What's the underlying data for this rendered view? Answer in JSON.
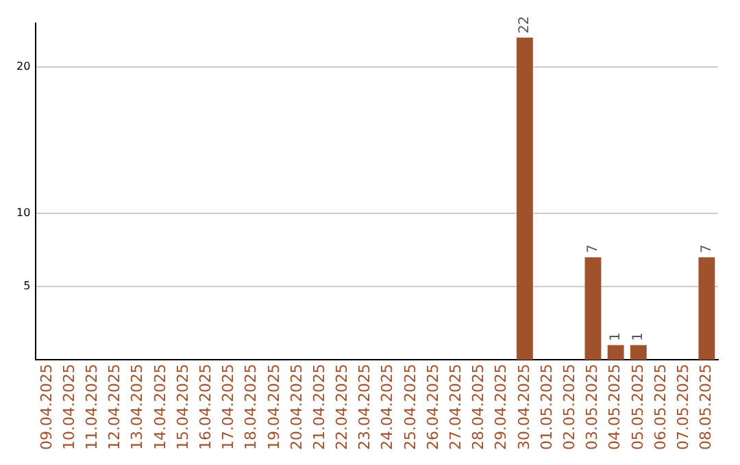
{
  "chart_data": {
    "type": "bar",
    "categories": [
      "09.04.2025",
      "10.04.2025",
      "11.04.2025",
      "12.04.2025",
      "13.04.2025",
      "14.04.2025",
      "15.04.2025",
      "16.04.2025",
      "17.04.2025",
      "18.04.2025",
      "19.04.2025",
      "20.04.2025",
      "21.04.2025",
      "22.04.2025",
      "23.04.2025",
      "24.04.2025",
      "25.04.2025",
      "26.04.2025",
      "27.04.2025",
      "28.04.2025",
      "29.04.2025",
      "30.04.2025",
      "01.05.2025",
      "02.05.2025",
      "03.05.2025",
      "04.05.2025",
      "05.05.2025",
      "06.05.2025",
      "07.05.2025",
      "08.05.2025"
    ],
    "values": [
      0,
      0,
      0,
      0,
      0,
      0,
      0,
      0,
      0,
      0,
      0,
      0,
      0,
      0,
      0,
      0,
      0,
      0,
      0,
      0,
      0,
      22,
      0,
      0,
      7,
      1,
      1,
      0,
      0,
      7
    ],
    "value_labels": [
      null,
      null,
      null,
      null,
      null,
      null,
      null,
      null,
      null,
      null,
      null,
      null,
      null,
      null,
      null,
      null,
      null,
      null,
      null,
      null,
      null,
      "22",
      null,
      null,
      "7",
      "1",
      "1",
      null,
      null,
      "7"
    ],
    "color": "#a0522d",
    "ylim": [
      0,
      23
    ],
    "yticks": [
      5,
      10,
      20
    ],
    "grid": "y",
    "legend": false
  }
}
